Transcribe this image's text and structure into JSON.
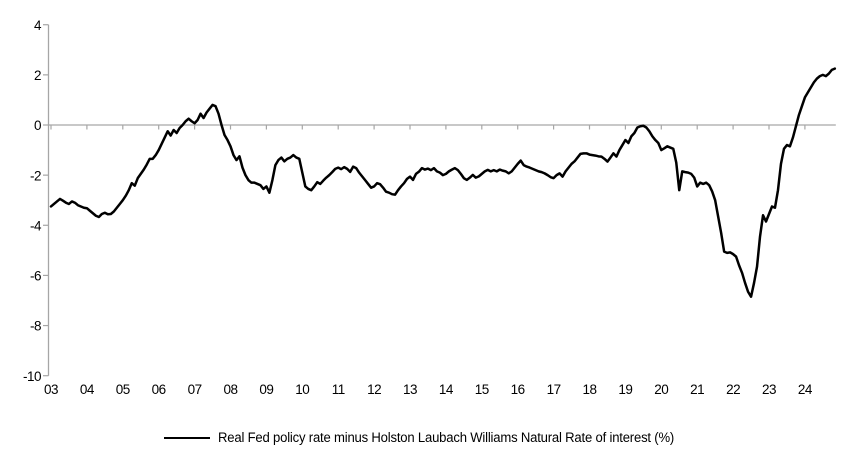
{
  "chart_data": {
    "type": "line",
    "title": "",
    "xlabel": "",
    "ylabel": "",
    "legend_position": "bottom-center",
    "grid": "zero-line-only",
    "colors": {
      "line": "#000000",
      "axis": "#a6a6a6",
      "text": "#000000",
      "background": "#ffffff"
    },
    "y_axis": {
      "ticks": [
        4,
        2,
        0,
        -2,
        -4,
        -6,
        -8,
        -10
      ],
      "range": [
        -10,
        4
      ]
    },
    "x_axis": {
      "tick_labels": [
        "03",
        "04",
        "05",
        "06",
        "07",
        "08",
        "09",
        "10",
        "11",
        "12",
        "13",
        "14",
        "15",
        "16",
        "17",
        "18",
        "19",
        "20",
        "21",
        "22",
        "23",
        "24"
      ],
      "start": "2003-01",
      "frequency": "monthly"
    },
    "series": [
      {
        "name": "Real Fed policy rate minus Holston Laubach Williams Natural Rate of interest (%)",
        "color": "#000000",
        "values": [
          -3.25,
          -3.15,
          -3.05,
          -2.95,
          -3.02,
          -3.1,
          -3.15,
          -3.05,
          -3.1,
          -3.2,
          -3.25,
          -3.3,
          -3.32,
          -3.42,
          -3.52,
          -3.62,
          -3.67,
          -3.55,
          -3.5,
          -3.56,
          -3.55,
          -3.45,
          -3.3,
          -3.15,
          -3.0,
          -2.82,
          -2.6,
          -2.32,
          -2.42,
          -2.12,
          -1.95,
          -1.78,
          -1.58,
          -1.35,
          -1.35,
          -1.2,
          -1.0,
          -0.75,
          -0.5,
          -0.25,
          -0.42,
          -0.2,
          -0.32,
          -0.12,
          0.0,
          0.15,
          0.25,
          0.15,
          0.07,
          0.2,
          0.45,
          0.28,
          0.5,
          0.65,
          0.8,
          0.75,
          0.45,
          0.0,
          -0.4,
          -0.6,
          -0.85,
          -1.2,
          -1.4,
          -1.25,
          -1.7,
          -2.0,
          -2.2,
          -2.3,
          -2.3,
          -2.35,
          -2.4,
          -2.55,
          -2.45,
          -2.7,
          -2.2,
          -1.6,
          -1.4,
          -1.3,
          -1.45,
          -1.35,
          -1.3,
          -1.2,
          -1.3,
          -1.35,
          -1.9,
          -2.45,
          -2.55,
          -2.6,
          -2.45,
          -2.28,
          -2.35,
          -2.22,
          -2.1,
          -2.0,
          -1.88,
          -1.75,
          -1.7,
          -1.76,
          -1.68,
          -1.75,
          -1.87,
          -1.66,
          -1.72,
          -1.9,
          -2.05,
          -2.2,
          -2.35,
          -2.5,
          -2.45,
          -2.32,
          -2.36,
          -2.5,
          -2.66,
          -2.7,
          -2.76,
          -2.78,
          -2.6,
          -2.45,
          -2.32,
          -2.15,
          -2.06,
          -2.19,
          -1.95,
          -1.86,
          -1.72,
          -1.78,
          -1.74,
          -1.8,
          -1.72,
          -1.85,
          -1.9,
          -2.0,
          -1.95,
          -1.85,
          -1.78,
          -1.72,
          -1.8,
          -1.95,
          -2.12,
          -2.19,
          -2.1,
          -1.99,
          -2.1,
          -2.05,
          -1.95,
          -1.85,
          -1.79,
          -1.85,
          -1.8,
          -1.85,
          -1.78,
          -1.82,
          -1.85,
          -1.93,
          -1.85,
          -1.7,
          -1.55,
          -1.42,
          -1.6,
          -1.66,
          -1.7,
          -1.75,
          -1.8,
          -1.85,
          -1.88,
          -1.93,
          -2.0,
          -2.08,
          -2.12,
          -2.0,
          -1.93,
          -2.06,
          -1.85,
          -1.7,
          -1.55,
          -1.45,
          -1.3,
          -1.15,
          -1.13,
          -1.13,
          -1.18,
          -1.2,
          -1.22,
          -1.25,
          -1.26,
          -1.35,
          -1.46,
          -1.3,
          -1.13,
          -1.26,
          -1.0,
          -0.8,
          -0.6,
          -0.72,
          -0.45,
          -0.32,
          -0.1,
          -0.05,
          -0.03,
          -0.1,
          -0.25,
          -0.45,
          -0.6,
          -0.72,
          -1.0,
          -0.93,
          -0.85,
          -0.9,
          -0.95,
          -1.5,
          -2.6,
          -1.85,
          -1.88,
          -1.9,
          -1.95,
          -2.1,
          -2.45,
          -2.3,
          -2.35,
          -2.3,
          -2.4,
          -2.65,
          -3.0,
          -3.65,
          -4.3,
          -5.05,
          -5.1,
          -5.08,
          -5.15,
          -5.25,
          -5.6,
          -5.9,
          -6.3,
          -6.65,
          -6.85,
          -6.3,
          -5.65,
          -4.45,
          -3.6,
          -3.85,
          -3.55,
          -3.25,
          -3.3,
          -2.6,
          -1.55,
          -0.95,
          -0.8,
          -0.85,
          -0.5,
          -0.05,
          0.4,
          0.75,
          1.1,
          1.3,
          1.5,
          1.7,
          1.85,
          1.95,
          2.0,
          1.95,
          2.05,
          2.2,
          2.25
        ]
      }
    ]
  },
  "legend": {
    "label": "Real Fed policy rate minus Holston Laubach Williams Natural Rate of interest (%)"
  }
}
